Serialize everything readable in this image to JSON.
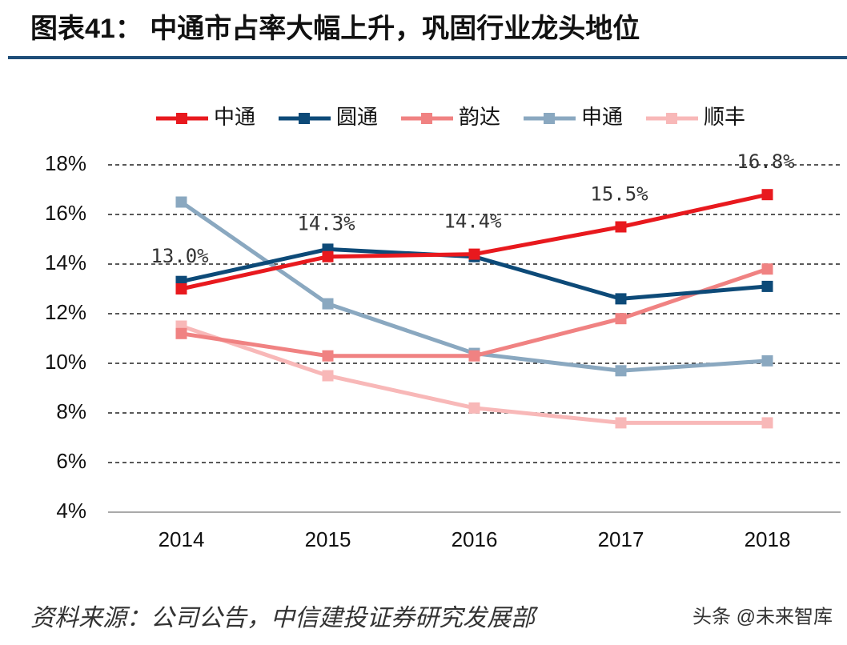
{
  "chart_data": {
    "type": "line",
    "title": "图表41：  中通市占率大幅上升，巩固行业龙头地位",
    "source": "资料来源：公司公告，中信建投证券研究发展部",
    "watermark": "头条 @未来智库",
    "categories": [
      "2014",
      "2015",
      "2016",
      "2017",
      "2018"
    ],
    "series": [
      {
        "name": "中通",
        "color": "#e8191e",
        "values": [
          13.0,
          14.3,
          14.4,
          15.5,
          16.8
        ],
        "value_labels": [
          "13.0%",
          "14.3%",
          "14.4%",
          "15.5%",
          "16.8%"
        ]
      },
      {
        "name": "圆通",
        "color": "#0d4a78",
        "values": [
          13.3,
          14.6,
          14.3,
          12.6,
          13.1
        ]
      },
      {
        "name": "韵达",
        "color": "#f08282",
        "values": [
          11.2,
          10.3,
          10.3,
          11.8,
          13.8
        ]
      },
      {
        "name": "申通",
        "color": "#8aa8c0",
        "values": [
          16.5,
          12.4,
          10.4,
          9.7,
          10.1
        ]
      },
      {
        "name": "顺丰",
        "color": "#f8b8b8",
        "values": [
          11.5,
          9.5,
          8.2,
          7.6,
          7.6
        ]
      }
    ],
    "ylim": [
      4,
      18
    ],
    "yticks": [
      {
        "value": 4,
        "label": "4%"
      },
      {
        "value": 6,
        "label": "6%"
      },
      {
        "value": 8,
        "label": "8%"
      },
      {
        "value": 10,
        "label": "10%"
      },
      {
        "value": 12,
        "label": "12%"
      },
      {
        "value": 14,
        "label": "14%"
      },
      {
        "value": 16,
        "label": "16%"
      },
      {
        "value": 18,
        "label": "18%"
      }
    ],
    "grid": true
  }
}
